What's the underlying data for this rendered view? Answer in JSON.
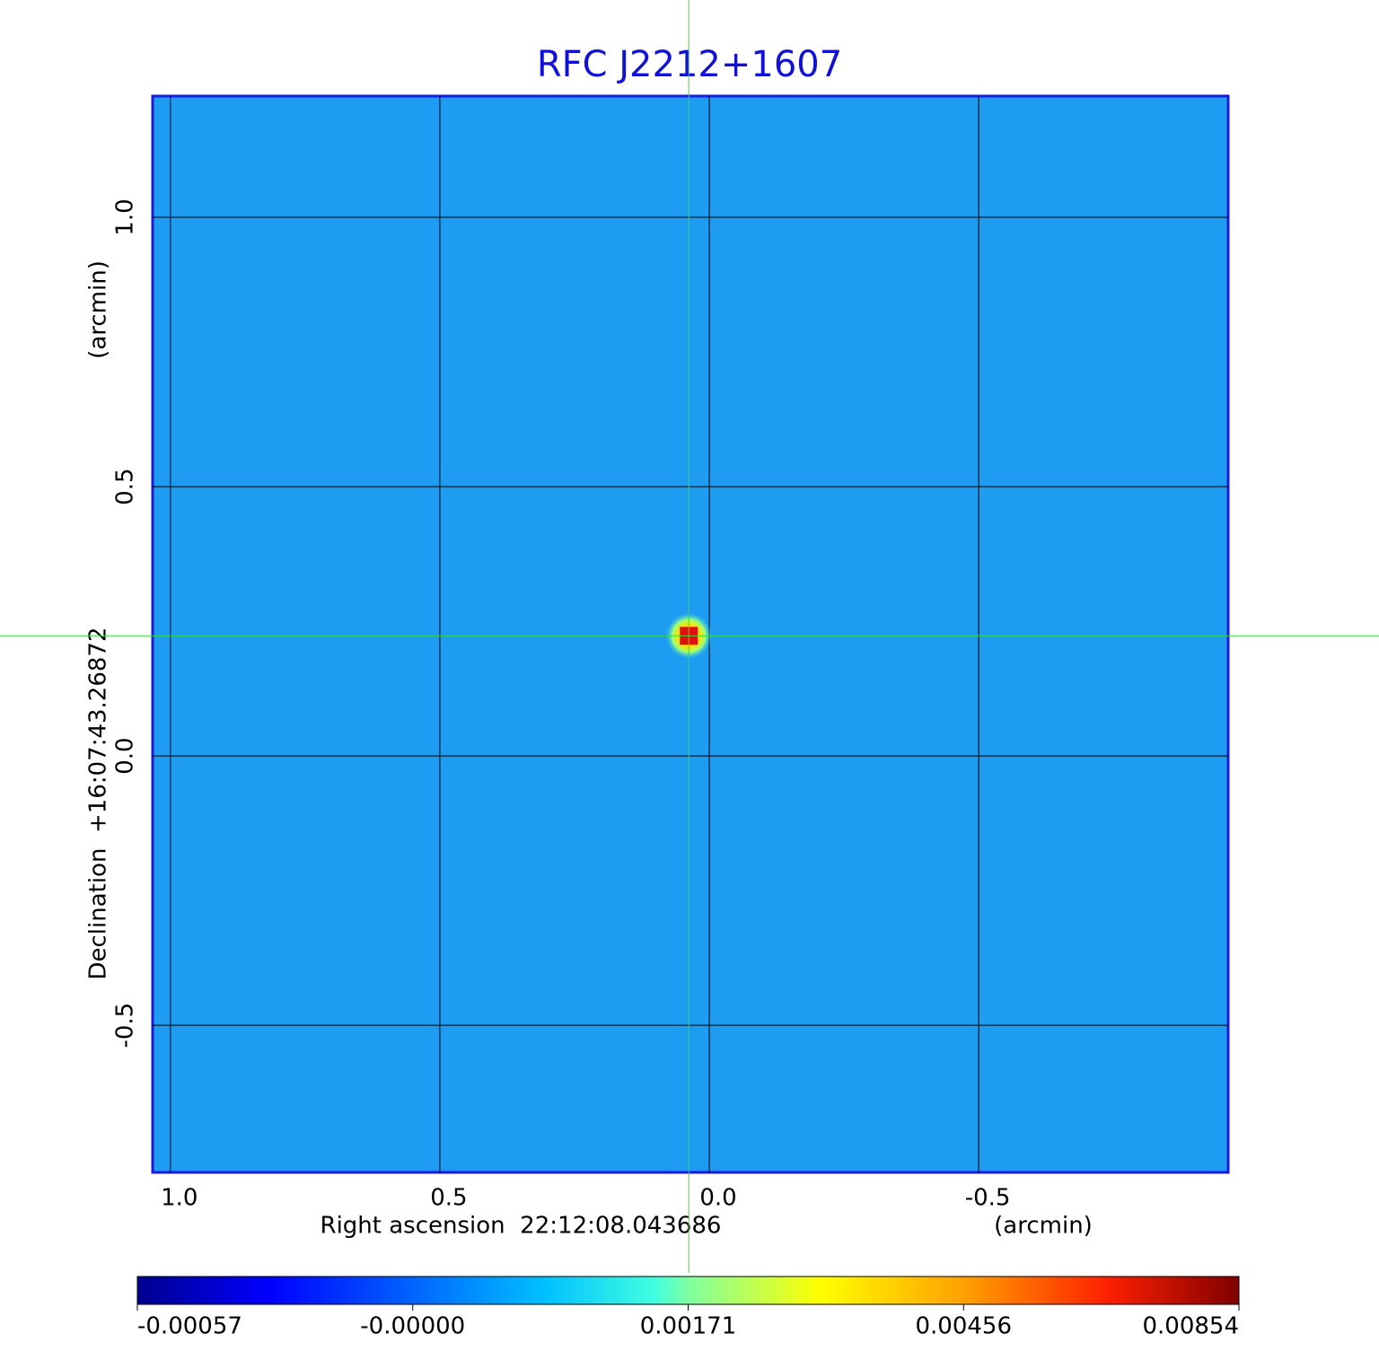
{
  "chart_data": {
    "type": "image",
    "title": "RFC J2212+1607",
    "x_label": "Right ascension  22:12:08.043686",
    "x_unit": "(arcmin)",
    "y_label": "Declination  +16:07:43.26872",
    "y_unit": "(arcmin)",
    "xlim": [
      1.033,
      -0.963
    ],
    "ylim": [
      -0.773,
      1.225
    ],
    "xticks": [
      {
        "value": 1,
        "label": "1.0"
      },
      0.5,
      {
        "value": 0,
        "label": "0.0"
      },
      -0.5
    ],
    "yticks": [
      -0.5,
      {
        "value": 0,
        "label": "0.0"
      },
      0.5,
      {
        "value": 1,
        "label": "1.0"
      }
    ],
    "grid": true,
    "source": {
      "x": 0.038,
      "y": 0.223
    },
    "colorbar": {
      "lim": [
        -0.00057,
        0.00854
      ],
      "ticks": [
        -0.00057,
        {
          "value": 0,
          "label": "-0.00000"
        },
        0.00171,
        0.00456,
        0.00854
      ]
    }
  }
}
